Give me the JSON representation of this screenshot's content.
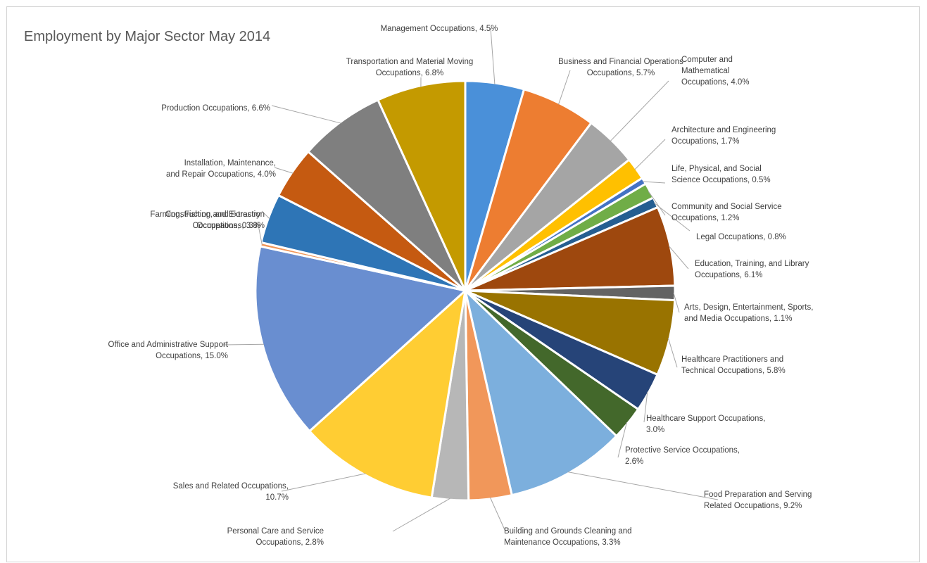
{
  "chart_data": {
    "type": "pie",
    "title": "Employment by Major Sector May 2014",
    "slices": [
      {
        "label_lines": [
          "Management Occupations, 4.5%"
        ],
        "value": 4.5,
        "color": "#4a90d9"
      },
      {
        "label_lines": [
          "Business and Financial Operations",
          "Occupations, 5.7%"
        ],
        "value": 5.7,
        "color": "#ed7d31"
      },
      {
        "label_lines": [
          "Computer and",
          "Mathematical",
          "Occupations, 4.0%"
        ],
        "value": 4.0,
        "color": "#a5a5a5"
      },
      {
        "label_lines": [
          "Architecture and Engineering",
          "Occupations, 1.7%"
        ],
        "value": 1.7,
        "color": "#ffc000"
      },
      {
        "label_lines": [
          "Life, Physical, and Social",
          "Science Occupations, 0.5%"
        ],
        "value": 0.5,
        "color": "#4472c4"
      },
      {
        "label_lines": [
          "Community and Social Service",
          "Occupations, 1.2%"
        ],
        "value": 1.2,
        "color": "#70ad47"
      },
      {
        "label_lines": [
          "Legal Occupations, 0.8%"
        ],
        "value": 0.8,
        "color": "#255e91"
      },
      {
        "label_lines": [
          "Education, Training, and Library",
          "Occupations, 6.1%"
        ],
        "value": 6.1,
        "color": "#9e480e"
      },
      {
        "label_lines": [
          "Arts, Design, Entertainment, Sports,",
          "and Media Occupations, 1.1%"
        ],
        "value": 1.1,
        "color": "#636363"
      },
      {
        "label_lines": [
          "Healthcare Practitioners and",
          "Technical Occupations, 5.8%"
        ],
        "value": 5.8,
        "color": "#997300"
      },
      {
        "label_lines": [
          "Healthcare Support Occupations,",
          "3.0%"
        ],
        "value": 3.0,
        "color": "#264478"
      },
      {
        "label_lines": [
          "Protective Service Occupations,",
          "2.6%"
        ],
        "value": 2.6,
        "color": "#43682b"
      },
      {
        "label_lines": [
          "Food Preparation and Serving",
          "Related Occupations, 9.2%"
        ],
        "value": 9.2,
        "color": "#7cafdd"
      },
      {
        "label_lines": [
          "Building and Grounds Cleaning and",
          "Maintenance Occupations, 3.3%"
        ],
        "value": 3.3,
        "color": "#f1975a"
      },
      {
        "label_lines": [
          "Personal Care and Service",
          "Occupations, 2.8%"
        ],
        "value": 2.8,
        "color": "#b7b7b7"
      },
      {
        "label_lines": [
          "Sales and Related Occupations,",
          "10.7%"
        ],
        "value": 10.7,
        "color": "#ffcd33"
      },
      {
        "label_lines": [
          "Office and Administrative Support",
          "Occupations, 15.0%"
        ],
        "value": 15.0,
        "color": "#698ed0"
      },
      {
        "label_lines": [
          "Farming, Fishing, and Forestry",
          "Occupations, 0.3%"
        ],
        "value": 0.3,
        "color": "#f1975a"
      },
      {
        "label_lines": [
          "Construction and Extraction",
          "Occupations, 3.8%"
        ],
        "value": 3.8,
        "color": "#2e75b6"
      },
      {
        "label_lines": [
          "Installation, Maintenance,",
          "and Repair Occupations, 4.0%"
        ],
        "value": 4.0,
        "color": "#c55a11"
      },
      {
        "label_lines": [
          "Production Occupations, 6.6%"
        ],
        "value": 6.6,
        "color": "#7f7f7f"
      },
      {
        "label_lines": [
          "Transportation and Material Moving",
          "Occupations, 6.8%"
        ],
        "value": 6.8,
        "color": "#c49a00"
      }
    ]
  }
}
